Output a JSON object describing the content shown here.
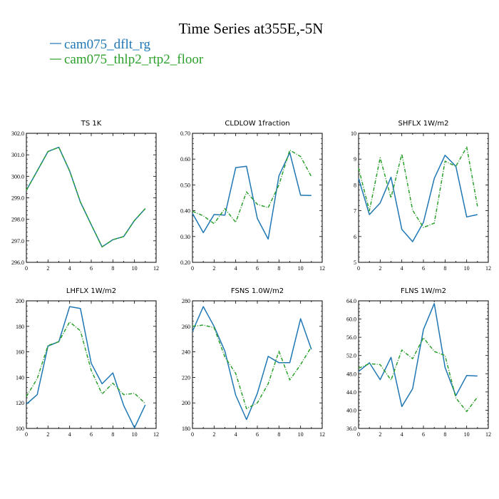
{
  "title": "Time Series at355E,-5N",
  "colors": {
    "series1": "#1f77b4",
    "series2": "#2ca02c"
  },
  "legend": [
    {
      "label": "cam075_dflt_rg",
      "color": "#1f77b4",
      "dash": "solid"
    },
    {
      "label": "cam075_thlp2_rtp2_floor",
      "color": "#2ca02c",
      "dash": "dashed"
    }
  ],
  "chart_data": [
    {
      "type": "line",
      "title": "TS   1K",
      "x": [
        0,
        1,
        2,
        3,
        4,
        5,
        6,
        7,
        8,
        9,
        10,
        11
      ],
      "xlim": [
        0,
        12
      ],
      "xticks": [
        "0",
        "2",
        "4",
        "6",
        "8",
        "10",
        "12"
      ],
      "ylim": [
        296.0,
        302.0
      ],
      "yticks": [
        "296.0",
        "297.0",
        "298.0",
        "299.0",
        "300.0",
        "301.0",
        "302.0"
      ],
      "series": [
        {
          "name": "cam075_dflt_rg",
          "values": [
            299.35,
            300.25,
            301.15,
            301.35,
            300.25,
            298.8,
            297.75,
            296.72,
            297.05,
            297.2,
            297.95,
            298.5
          ]
        },
        {
          "name": "cam075_thlp2_rtp2_floor",
          "values": [
            299.35,
            300.25,
            301.15,
            301.35,
            300.25,
            298.8,
            297.75,
            296.72,
            297.05,
            297.2,
            297.95,
            298.5
          ]
        }
      ]
    },
    {
      "type": "line",
      "title": "CLDLOW   1fraction",
      "x": [
        0,
        1,
        2,
        3,
        4,
        5,
        6,
        7,
        8,
        9,
        10,
        11
      ],
      "xlim": [
        0,
        12
      ],
      "xticks": [
        "0",
        "2",
        "4",
        "6",
        "8",
        "10",
        "12"
      ],
      "ylim": [
        0.2,
        0.7
      ],
      "yticks": [
        "0.20",
        "0.30",
        "0.40",
        "0.50",
        "0.60",
        "0.70"
      ],
      "series": [
        {
          "name": "cam075_dflt_rg",
          "values": [
            0.39,
            0.315,
            0.385,
            0.383,
            0.567,
            0.572,
            0.37,
            0.29,
            0.535,
            0.625,
            0.46,
            0.459
          ]
        },
        {
          "name": "cam075_thlp2_rtp2_floor",
          "values": [
            0.398,
            0.38,
            0.35,
            0.408,
            0.355,
            0.473,
            0.425,
            0.412,
            0.5,
            0.635,
            0.61,
            0.532
          ]
        }
      ]
    },
    {
      "type": "line",
      "title": "SHFLX   1W/m2",
      "x": [
        0,
        1,
        2,
        3,
        4,
        5,
        6,
        7,
        8,
        9,
        10,
        11
      ],
      "xlim": [
        0,
        12
      ],
      "xticks": [
        "0",
        "2",
        "4",
        "6",
        "8",
        "10",
        "12"
      ],
      "ylim": [
        5,
        10
      ],
      "yticks": [
        "5",
        "6",
        "7",
        "8",
        "9",
        "10"
      ],
      "series": [
        {
          "name": "cam075_dflt_rg",
          "values": [
            8.25,
            6.85,
            7.3,
            8.3,
            6.28,
            5.8,
            6.55,
            8.25,
            9.15,
            8.72,
            6.76,
            6.85
          ]
        },
        {
          "name": "cam075_thlp2_rtp2_floor",
          "values": [
            8.65,
            7.0,
            9.05,
            7.5,
            9.2,
            7.02,
            6.35,
            6.52,
            8.92,
            8.72,
            9.47,
            7.17
          ]
        }
      ]
    },
    {
      "type": "line",
      "title": "LHFLX   1W/m2",
      "x": [
        0,
        1,
        2,
        3,
        4,
        5,
        6,
        7,
        8,
        9,
        10,
        11
      ],
      "xlim": [
        0,
        12
      ],
      "xticks": [
        "0",
        "2",
        "4",
        "6",
        "8",
        "10",
        "12"
      ],
      "ylim": [
        100,
        200
      ],
      "yticks": [
        "100",
        "120",
        "140",
        "160",
        "180",
        "200"
      ],
      "series": [
        {
          "name": "cam075_dflt_rg",
          "values": [
            119,
            126.5,
            164.5,
            168,
            195.5,
            194,
            151,
            135,
            143.5,
            118,
            100.5,
            118.5
          ]
        },
        {
          "name": "cam075_thlp2_rtp2_floor",
          "values": [
            125,
            139,
            165,
            168,
            183.5,
            176.5,
            145.5,
            127,
            135.5,
            126.5,
            127.5,
            119.5
          ]
        }
      ]
    },
    {
      "type": "line",
      "title": "FSNS   1.0W/m2",
      "x": [
        0,
        1,
        2,
        3,
        4,
        5,
        6,
        7,
        8,
        9,
        10,
        11
      ],
      "xlim": [
        0,
        12
      ],
      "xticks": [
        "0",
        "2",
        "4",
        "6",
        "8",
        "10",
        "12"
      ],
      "ylim": [
        180,
        280
      ],
      "yticks": [
        "180",
        "200",
        "220",
        "240",
        "260",
        "280"
      ],
      "series": [
        {
          "name": "cam075_dflt_rg",
          "values": [
            256,
            275.5,
            260,
            240.5,
            206,
            187,
            207.5,
            236.5,
            231.5,
            231.5,
            266,
            242
          ]
        },
        {
          "name": "cam075_thlp2_rtp2_floor",
          "values": [
            260,
            261,
            259,
            236,
            223,
            195.5,
            200,
            215,
            240.5,
            218,
            230,
            244
          ]
        }
      ]
    },
    {
      "type": "line",
      "title": "FLNS   1W/m2",
      "x": [
        0,
        1,
        2,
        3,
        4,
        5,
        6,
        7,
        8,
        9,
        10,
        11
      ],
      "xlim": [
        0,
        12
      ],
      "xticks": [
        "0",
        "2",
        "4",
        "6",
        "8",
        "10",
        "12"
      ],
      "ylim": [
        36.0,
        64.0
      ],
      "yticks": [
        "36.0",
        "40.0",
        "44.0",
        "48.0",
        "52.0",
        "56.0",
        "60.0",
        "64.0"
      ],
      "series": [
        {
          "name": "cam075_dflt_rg",
          "values": [
            48.5,
            50.4,
            46.7,
            51.6,
            40.8,
            44.7,
            57.7,
            63.4,
            49.4,
            43.2,
            47.6,
            47.5
          ]
        },
        {
          "name": "cam075_thlp2_rtp2_floor",
          "values": [
            49.2,
            50.2,
            50.0,
            46.6,
            53.2,
            51.3,
            55.9,
            52.9,
            52.0,
            42.7,
            39.7,
            42.9
          ]
        }
      ]
    }
  ]
}
